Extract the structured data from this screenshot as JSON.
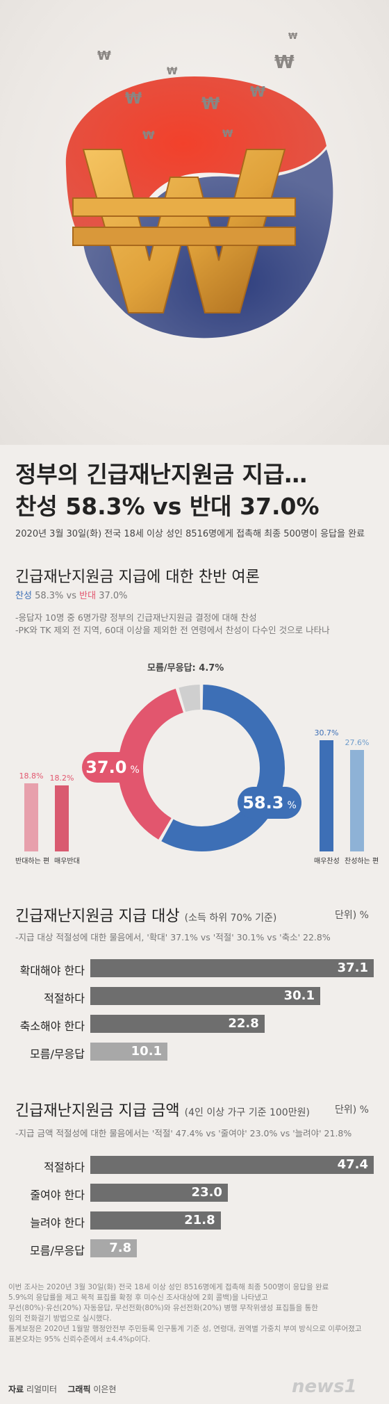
{
  "headline": {
    "line1": "정부의 긴급재난지원금 지급…",
    "line2": "찬성 58.3% vs 반대 37.0%",
    "sub": "2020년 3월 30일(화) 전국 18세 이상 성인 8516명에게 접촉해 최종 500명이 응답을 완료"
  },
  "opinion": {
    "title": "긴급재난지원금 지급에 대한 찬반 여론",
    "favor_label": "찬성",
    "favor_value": "58.3%",
    "vs": "vs",
    "oppose_label": "반대",
    "oppose_value": "37.0%",
    "notes": [
      "-응답자 10명 중 6명가량 정부의 긴급재난지원금 결정에 대해 찬성",
      "-PK와 TK 제외 전 지역, 60대 이상을 제외한 전 연령에서 찬성이 다수인 것으로 나타나"
    ],
    "dontknow_label": "모름/무응답: 4.7%",
    "donut_favor_text": "58.3",
    "donut_oppose_text": "37.0",
    "pct_sign": "%",
    "left_bars": [
      {
        "label": "반대하는 편",
        "value_text": "18.8%"
      },
      {
        "label": "매우반대",
        "value_text": "18.2%"
      }
    ],
    "right_bars": [
      {
        "label": "매우찬성",
        "value_text": "30.7%"
      },
      {
        "label": "찬성하는 편",
        "value_text": "27.6%"
      }
    ]
  },
  "target": {
    "title": "긴급재난지원금 지급 대상",
    "title_small": "(소득 하위 70% 기준)",
    "unit": "단위) %",
    "note": "-지급 대상 적절성에 대한 물음에서, '확대' 37.1% vs '적절' 30.1% vs '축소' 22.8%",
    "rows": [
      {
        "label": "확대해야 한다",
        "value": "37.1"
      },
      {
        "label": "적절하다",
        "value": "30.1"
      },
      {
        "label": "축소해야 한다",
        "value": "22.8"
      },
      {
        "label": "모름/무응답",
        "value": "10.1"
      }
    ]
  },
  "amount": {
    "title": "긴급재난지원금 지급 금액",
    "title_small": "(4인 이상 가구 기준 100만원)",
    "unit": "단위) %",
    "note": "-지급 금액 적절성에 대한 물음에서는 '적절' 47.4% vs '줄여야' 23.0% vs '늘려야' 21.8%",
    "rows": [
      {
        "label": "적절하다",
        "value": "47.4"
      },
      {
        "label": "줄여야 한다",
        "value": "23.0"
      },
      {
        "label": "늘려야 한다",
        "value": "21.8"
      },
      {
        "label": "모름/무응답",
        "value": "7.8"
      }
    ]
  },
  "footer": {
    "lines": [
      "이번 조사는 2020년 3월 30일(화) 전국 18세 이상 성인 8516명에게 접촉해 최종 500명이 응답을 완료",
      "5.9%의 응답률을 제고 목적 표집률 확정 후 미수신 조사대상에 2회 콜백)을 나타냈고",
      "무선(80%)·유선(20%) 자동응답, 무선전화(80%)와 유선전화(20%) 병행 무작위생성 표집틀을 통한",
      "임의 전화걸기 방법으로 실시했다.",
      "통계보정은 2020년 1월말 행정안전부 주민등록 인구통계 기준 성, 연령대, 권역별 가중치 부여 방식으로 이루어졌고",
      "표본오차는 95% 신뢰수준에서 ±4.4%p이다."
    ],
    "source_label": "자료",
    "source": "리얼미터",
    "graphic_label": "그래픽",
    "graphic": "이은현",
    "logo": "news1"
  },
  "colors": {
    "favor": "#3d6fb6",
    "oppose": "#e2566e",
    "dontknow": "#cfcfcf",
    "favor_light": "#8eb2d6",
    "oppose_light": "#e7a0ac",
    "bar_dark": "#6e6e6e",
    "bar_light": "#a8a8a8",
    "won_gold": "#e0a23b"
  },
  "chart_data": [
    {
      "type": "pie",
      "labels": [
        "찬성",
        "반대",
        "모름/무응답"
      ],
      "values": [
        58.3,
        37.0,
        4.7
      ],
      "sub_values": {
        "매우찬성": 30.7,
        "찬성하는 편": 27.6,
        "반대하는 편": 18.8,
        "매우반대": 18.2
      }
    },
    {
      "type": "bar",
      "title": "긴급재난지원금 지급 대상",
      "categories": [
        "확대해야 한다",
        "적절하다",
        "축소해야 한다",
        "모름/무응답"
      ],
      "values": [
        37.1,
        30.1,
        22.8,
        10.1
      ]
    },
    {
      "type": "bar",
      "title": "긴급재난지원금 지급 금액",
      "categories": [
        "적절하다",
        "줄여야 한다",
        "늘려야 한다",
        "모름/무응답"
      ],
      "values": [
        47.4,
        23.0,
        21.8,
        7.8
      ]
    }
  ]
}
